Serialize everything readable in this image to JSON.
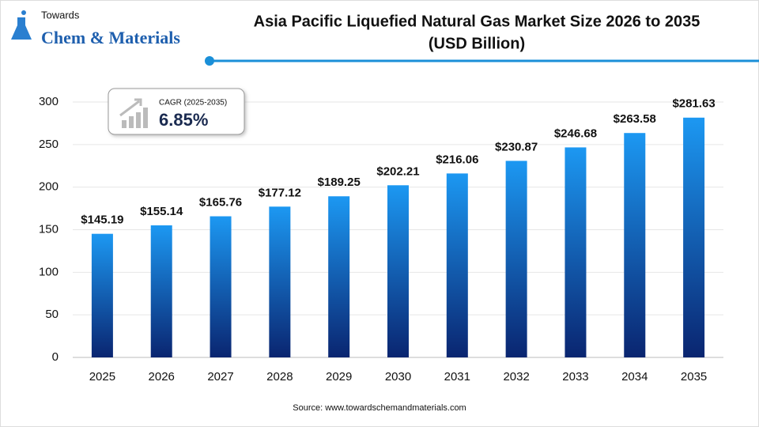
{
  "logo": {
    "line1": "Towards",
    "line2": "Chem & Materials"
  },
  "chart_data": {
    "type": "bar",
    "title": "Asia Pacific Liquefied Natural Gas Market Size 2026 to 2035",
    "subtitle": "(USD Billion)",
    "categories": [
      "2025",
      "2026",
      "2027",
      "2028",
      "2029",
      "2030",
      "2031",
      "2032",
      "2033",
      "2034",
      "2035"
    ],
    "values": [
      145.19,
      155.14,
      165.76,
      177.12,
      189.25,
      202.21,
      216.06,
      230.87,
      246.68,
      263.58,
      281.63
    ],
    "value_labels": [
      "$145.19",
      "$155.14",
      "$165.76",
      "$177.12",
      "$189.25",
      "$202.21",
      "$216.06",
      "$230.87",
      "$246.68",
      "$263.58",
      "$281.63"
    ],
    "gradient": [
      "#1c98f2",
      "#0a2570"
    ],
    "ylim": [
      0,
      300
    ],
    "yticks": [
      0,
      50,
      100,
      150,
      200,
      250,
      300
    ],
    "grid": true,
    "annotation": {
      "label": "CAGR (2025-2035)",
      "value": "6.85%"
    },
    "source": "Source: www.towardschemandmaterials.com"
  }
}
